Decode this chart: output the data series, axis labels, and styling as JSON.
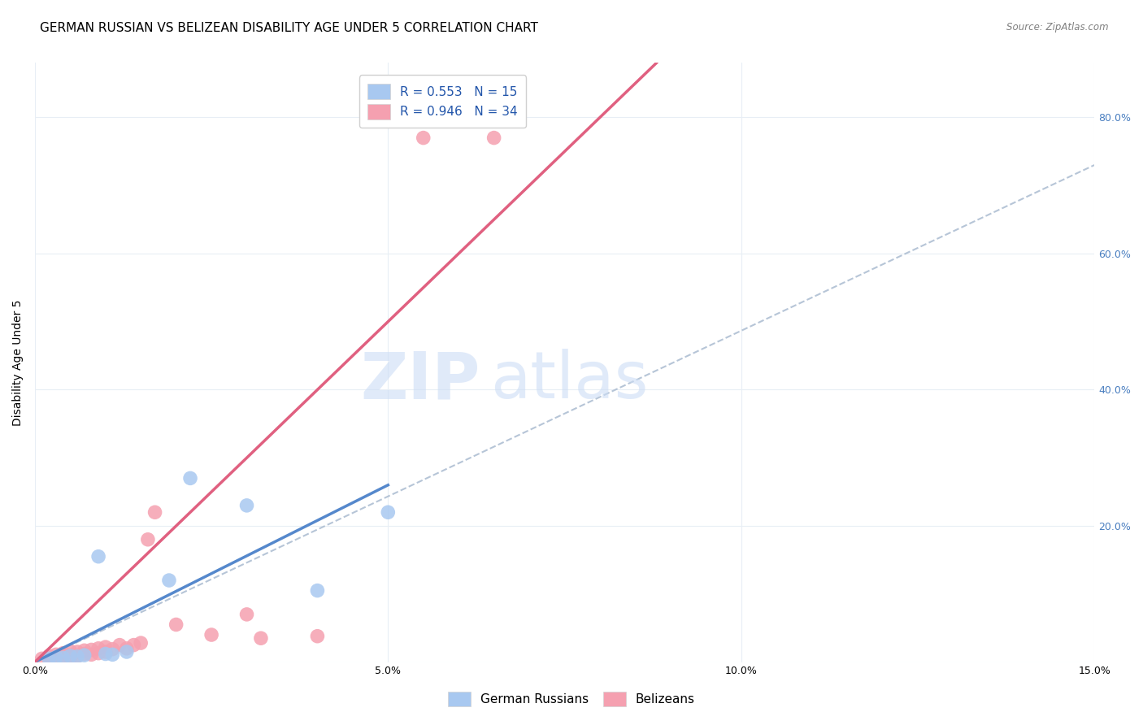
{
  "title": "GERMAN RUSSIAN VS BELIZEAN DISABILITY AGE UNDER 5 CORRELATION CHART",
  "source": "Source: ZipAtlas.com",
  "xlabel": "",
  "ylabel": "Disability Age Under 5",
  "xlim": [
    0.0,
    0.15
  ],
  "ylim": [
    0.0,
    0.88
  ],
  "xticks": [
    0.0,
    0.05,
    0.1,
    0.15
  ],
  "xticklabels": [
    "0.0%",
    "5.0%",
    "10.0%",
    "15.0%"
  ],
  "yticks_right": [
    0.2,
    0.4,
    0.6,
    0.8
  ],
  "yticklabels_right": [
    "20.0%",
    "40.0%",
    "60.0%",
    "80.0%"
  ],
  "legend_r_blue": "R = 0.553",
  "legend_n_blue": "N = 15",
  "legend_r_pink": "R = 0.946",
  "legend_n_pink": "N = 34",
  "blue_color": "#a8c8f0",
  "pink_color": "#f5a0b0",
  "blue_line_color": "#5588cc",
  "pink_line_color": "#e06080",
  "dashed_line_color": "#aabbd0",
  "watermark": "ZIPatlas",
  "watermark_color": "#ccddf5",
  "blue_scatter_x": [
    0.002,
    0.003,
    0.004,
    0.005,
    0.006,
    0.007,
    0.009,
    0.01,
    0.011,
    0.013,
    0.019,
    0.022,
    0.03,
    0.04,
    0.05
  ],
  "blue_scatter_y": [
    0.005,
    0.007,
    0.006,
    0.009,
    0.008,
    0.01,
    0.155,
    0.012,
    0.011,
    0.015,
    0.12,
    0.27,
    0.23,
    0.105,
    0.22
  ],
  "pink_scatter_x": [
    0.001,
    0.002,
    0.002,
    0.003,
    0.003,
    0.004,
    0.004,
    0.005,
    0.005,
    0.005,
    0.006,
    0.006,
    0.007,
    0.007,
    0.008,
    0.008,
    0.009,
    0.009,
    0.01,
    0.01,
    0.011,
    0.012,
    0.013,
    0.014,
    0.015,
    0.016,
    0.017,
    0.02,
    0.025,
    0.03,
    0.032,
    0.04,
    0.055,
    0.065
  ],
  "pink_scatter_y": [
    0.005,
    0.006,
    0.009,
    0.007,
    0.011,
    0.008,
    0.013,
    0.006,
    0.01,
    0.016,
    0.009,
    0.015,
    0.012,
    0.017,
    0.011,
    0.018,
    0.013,
    0.02,
    0.015,
    0.022,
    0.019,
    0.025,
    0.02,
    0.025,
    0.028,
    0.18,
    0.22,
    0.055,
    0.04,
    0.07,
    0.035,
    0.038,
    0.77,
    0.77
  ],
  "grid_color": "#e8eef5",
  "background_color": "#ffffff",
  "title_fontsize": 11,
  "axis_label_fontsize": 10,
  "tick_fontsize": 9,
  "legend_fontsize": 11,
  "blue_line_x": [
    0.0,
    0.05
  ],
  "blue_line_y": [
    0.0,
    0.26
  ],
  "pink_line_x": [
    0.0,
    0.088
  ],
  "pink_line_y": [
    0.0,
    0.88
  ],
  "dash_line_x": [
    0.0,
    0.15
  ],
  "dash_line_y": [
    0.0,
    0.73
  ]
}
